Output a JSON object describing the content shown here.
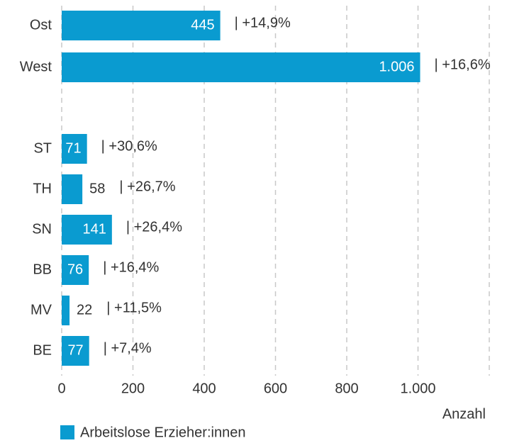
{
  "chart_data": {
    "type": "bar",
    "orientation": "horizontal",
    "categories": [
      "Ost",
      "West",
      "ST",
      "TH",
      "SN",
      "BB",
      "MV",
      "BE"
    ],
    "series": [
      {
        "name": "Arbeitslose Erzieher:innen",
        "color": "#0a9bd0",
        "values": [
          445,
          1006,
          71,
          58,
          141,
          76,
          22,
          77
        ],
        "value_labels": [
          "445",
          "1.006",
          "71",
          "58",
          "141",
          "76",
          "22",
          "77"
        ]
      }
    ],
    "change_labels": [
      "| +14,9%",
      "| +16,6%",
      "| +30,6%",
      "| +26,7%",
      "| +26,4%",
      "| +16,4%",
      "| +11,5%",
      "| +7,4%"
    ],
    "xlabel": "Anzahl",
    "xlim": [
      0,
      1200
    ],
    "xticks": [
      0,
      200,
      400,
      600,
      800,
      {
        "value": 1000,
        "label": "1.000"
      }
    ],
    "grid": true,
    "legend": "bottom-left"
  }
}
